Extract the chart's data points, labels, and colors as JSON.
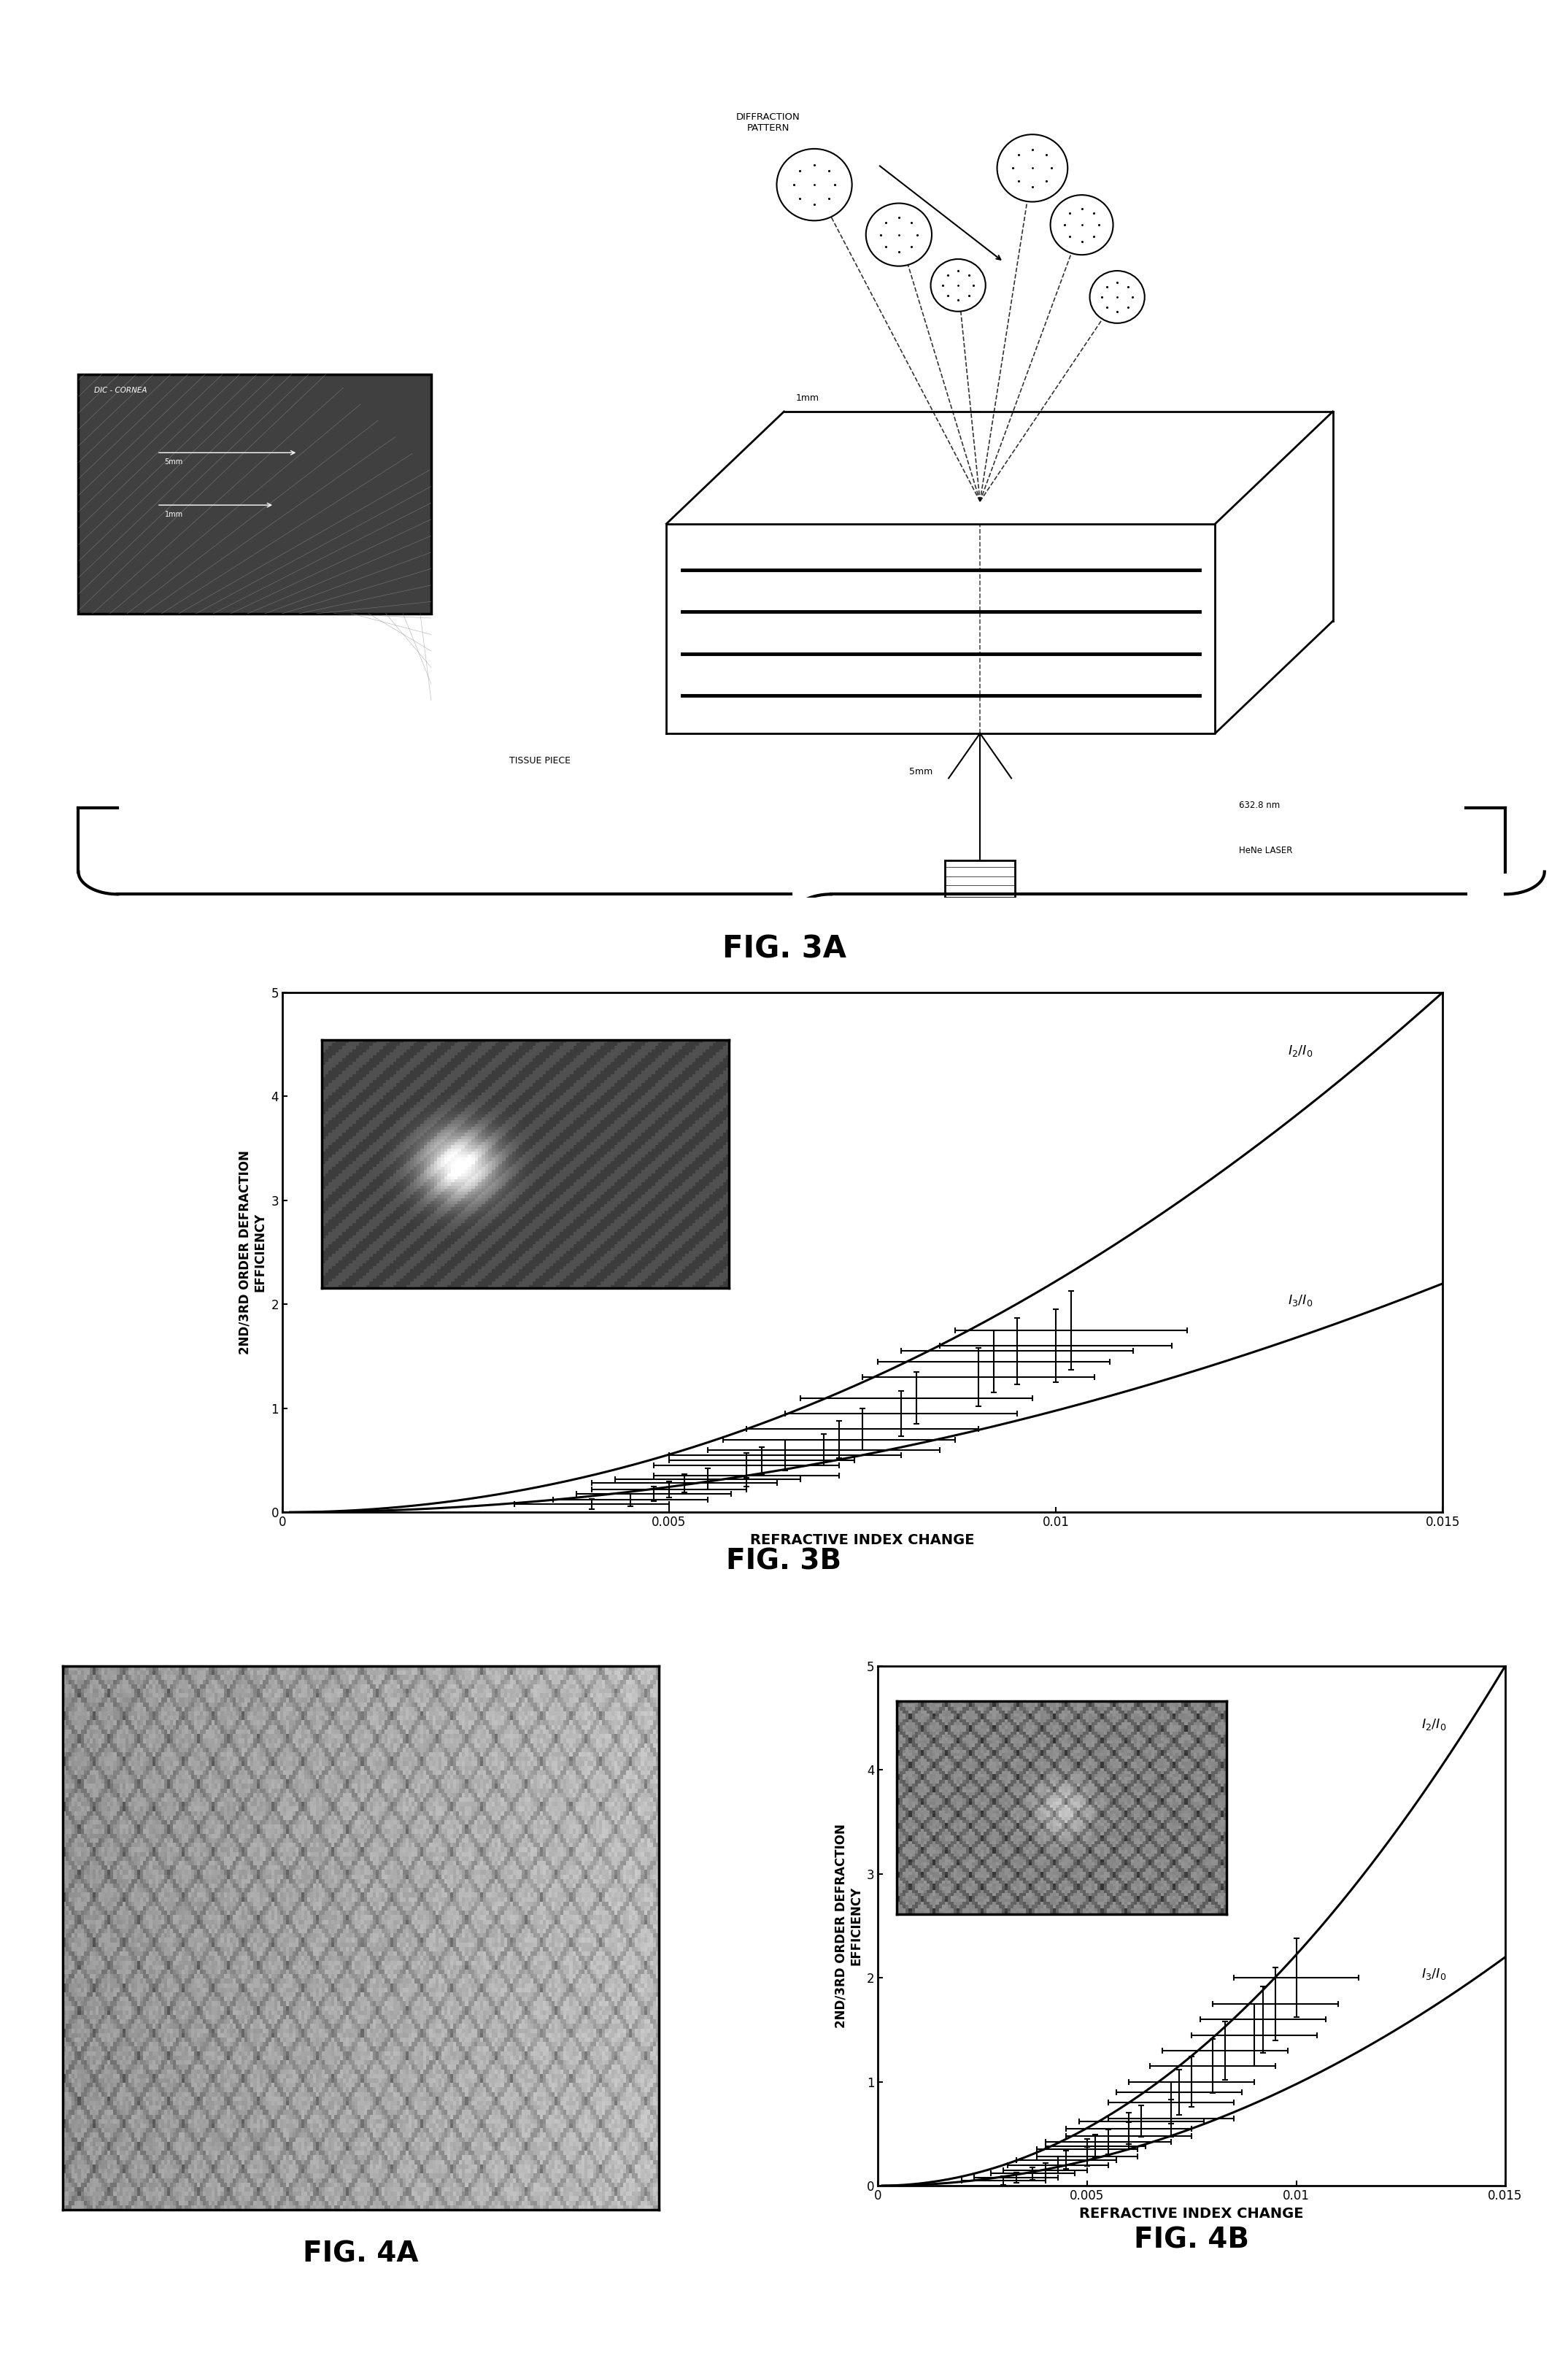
{
  "fig3b_data_x": [
    0.004,
    0.0045,
    0.0048,
    0.005,
    0.0052,
    0.0055,
    0.006,
    0.006,
    0.0062,
    0.0065,
    0.007,
    0.0072,
    0.0075,
    0.008,
    0.0082,
    0.009,
    0.0092,
    0.0095,
    0.01,
    0.0102
  ],
  "fig3b_data_y": [
    0.08,
    0.12,
    0.18,
    0.22,
    0.28,
    0.32,
    0.35,
    0.45,
    0.5,
    0.55,
    0.6,
    0.7,
    0.8,
    0.95,
    1.1,
    1.3,
    1.45,
    1.55,
    1.6,
    1.75
  ],
  "fig3b_xerr": [
    0.001,
    0.001,
    0.001,
    0.001,
    0.0012,
    0.0012,
    0.0012,
    0.0012,
    0.0012,
    0.0015,
    0.0015,
    0.0015,
    0.0015,
    0.0015,
    0.0015,
    0.0015,
    0.0015,
    0.0015,
    0.0015,
    0.0015
  ],
  "fig3b_yerr": [
    0.05,
    0.06,
    0.07,
    0.08,
    0.09,
    0.1,
    0.1,
    0.12,
    0.13,
    0.15,
    0.15,
    0.18,
    0.2,
    0.22,
    0.25,
    0.28,
    0.3,
    0.32,
    0.35,
    0.38
  ],
  "fig4b_data_x": [
    0.003,
    0.0033,
    0.0037,
    0.004,
    0.0043,
    0.0045,
    0.005,
    0.005,
    0.0052,
    0.0055,
    0.006,
    0.006,
    0.0063,
    0.007,
    0.007,
    0.0072,
    0.0075,
    0.008,
    0.0083,
    0.009,
    0.0092,
    0.0095,
    0.01
  ],
  "fig4b_data_y": [
    0.05,
    0.08,
    0.12,
    0.15,
    0.2,
    0.25,
    0.28,
    0.35,
    0.38,
    0.42,
    0.48,
    0.55,
    0.62,
    0.65,
    0.8,
    0.9,
    1.0,
    1.15,
    1.3,
    1.45,
    1.6,
    1.75,
    2.0
  ],
  "fig4b_xerr": [
    0.001,
    0.001,
    0.001,
    0.001,
    0.0012,
    0.0012,
    0.0012,
    0.0012,
    0.0012,
    0.0015,
    0.0015,
    0.0015,
    0.0015,
    0.0015,
    0.0015,
    0.0015,
    0.0015,
    0.0015,
    0.0015,
    0.0015,
    0.0015,
    0.0015,
    0.0015
  ],
  "fig4b_yerr": [
    0.04,
    0.05,
    0.06,
    0.07,
    0.08,
    0.09,
    0.09,
    0.1,
    0.11,
    0.12,
    0.13,
    0.15,
    0.15,
    0.18,
    0.2,
    0.22,
    0.24,
    0.26,
    0.28,
    0.3,
    0.32,
    0.35,
    0.38
  ],
  "xlim": [
    0,
    0.015
  ],
  "ylim": [
    0,
    5
  ],
  "xticks": [
    0,
    0.005,
    0.01,
    0.015
  ],
  "yticks": [
    0,
    1,
    2,
    3,
    4,
    5
  ],
  "xlabel": "REFRACTIVE INDEX CHANGE",
  "ylabel": "2ND/3RD ORDER DEFRACTION\nEFFICIENCY",
  "fig3a_label": "FIG. 3A",
  "fig3b_label": "FIG. 3B",
  "fig4a_label": "FIG. 4A",
  "fig4b_label": "FIG. 4B",
  "tissue_label": "TISSUE PIECE",
  "laser_label": "632.8 nm\nHeNe LASER",
  "size_1mm": "1mm",
  "size_5mm": "5mm",
  "diffraction_label": "DIFFRACTION\nPATTERN",
  "dic_label": "DIC - CORNEA",
  "bg_color": "#ffffff",
  "plot_bg": "#ffffff",
  "line_color": "#000000"
}
